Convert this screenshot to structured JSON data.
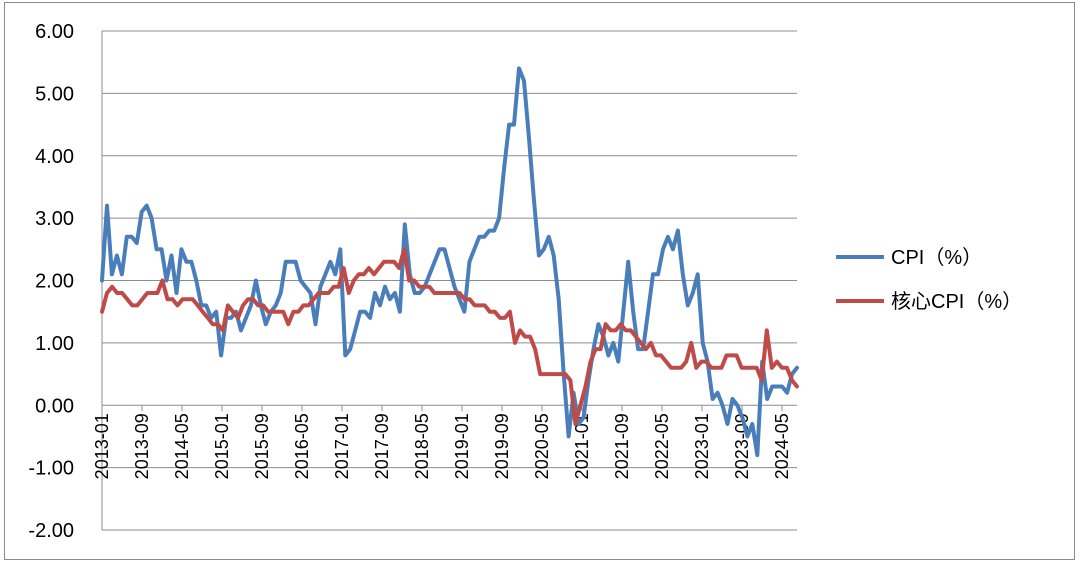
{
  "chart_data": {
    "type": "line",
    "title": "",
    "xlabel": "",
    "ylabel": "",
    "ylim": [
      -2.0,
      6.0
    ],
    "yticks": [
      "-2.00",
      "-1.00",
      "0.00",
      "1.00",
      "2.00",
      "3.00",
      "4.00",
      "5.00",
      "6.00"
    ],
    "grid": "horizontal",
    "legend_position": "right",
    "x_tick_labels": [
      "2013-01",
      "2013-09",
      "2014-05",
      "2015-01",
      "2015-09",
      "2016-05",
      "2017-01",
      "2017-09",
      "2018-05",
      "2019-01",
      "2019-09",
      "2020-05",
      "2021-01",
      "2021-09",
      "2022-05",
      "2023-01",
      "2023-09",
      "2024-05"
    ],
    "x_start": "2013-01",
    "x_end": "2024-08",
    "series": [
      {
        "name": "CPI（%）",
        "color": "#4a7ebb",
        "values": [
          2.0,
          3.2,
          2.1,
          2.4,
          2.1,
          2.7,
          2.7,
          2.6,
          3.1,
          3.2,
          3.0,
          2.5,
          2.5,
          2.0,
          2.4,
          1.8,
          2.5,
          2.3,
          2.3,
          2.0,
          1.6,
          1.6,
          1.4,
          1.5,
          0.8,
          1.4,
          1.4,
          1.5,
          1.2,
          1.4,
          1.6,
          2.0,
          1.6,
          1.3,
          1.5,
          1.6,
          1.8,
          2.3,
          2.3,
          2.3,
          2.0,
          1.9,
          1.8,
          1.3,
          1.9,
          2.1,
          2.3,
          2.1,
          2.5,
          0.8,
          0.9,
          1.2,
          1.5,
          1.5,
          1.4,
          1.8,
          1.6,
          1.9,
          1.7,
          1.8,
          1.5,
          2.9,
          2.1,
          1.8,
          1.8,
          1.9,
          2.1,
          2.3,
          2.5,
          2.5,
          2.2,
          1.9,
          1.7,
          1.5,
          2.3,
          2.5,
          2.7,
          2.7,
          2.8,
          2.8,
          3.0,
          3.8,
          4.5,
          4.5,
          5.4,
          5.2,
          4.3,
          3.3,
          2.4,
          2.5,
          2.7,
          2.4,
          1.7,
          0.5,
          -0.5,
          0.2,
          -0.3,
          -0.2,
          0.4,
          0.9,
          1.3,
          1.1,
          0.8,
          1.0,
          0.7,
          1.5,
          2.3,
          1.5,
          0.9,
          0.9,
          1.5,
          2.1,
          2.1,
          2.5,
          2.7,
          2.5,
          2.8,
          2.1,
          1.6,
          1.8,
          2.1,
          1.0,
          0.7,
          0.1,
          0.2,
          0.0,
          -0.3,
          0.1,
          0.0,
          -0.2,
          -0.5,
          -0.3,
          -0.8,
          0.7,
          0.1,
          0.3,
          0.3,
          0.3,
          0.2,
          0.5,
          0.6
        ],
        "end_value": 0.6
      },
      {
        "name": "核心CPI（%）",
        "color": "#be4b48",
        "values": [
          1.5,
          1.8,
          1.9,
          1.8,
          1.8,
          1.7,
          1.6,
          1.6,
          1.7,
          1.8,
          1.8,
          1.8,
          2.0,
          1.7,
          1.7,
          1.6,
          1.7,
          1.7,
          1.7,
          1.6,
          1.5,
          1.4,
          1.3,
          1.3,
          1.2,
          1.6,
          1.5,
          1.4,
          1.6,
          1.7,
          1.7,
          1.6,
          1.6,
          1.5,
          1.5,
          1.5,
          1.5,
          1.3,
          1.5,
          1.5,
          1.6,
          1.6,
          1.7,
          1.8,
          1.8,
          1.8,
          1.9,
          1.9,
          2.2,
          1.8,
          2.0,
          2.1,
          2.1,
          2.2,
          2.1,
          2.2,
          2.3,
          2.3,
          2.3,
          2.2,
          2.5,
          2.0,
          2.0,
          1.9,
          1.9,
          1.9,
          1.8,
          1.8,
          1.8,
          1.8,
          1.8,
          1.8,
          1.7,
          1.7,
          1.6,
          1.6,
          1.6,
          1.5,
          1.5,
          1.4,
          1.4,
          1.5,
          1.0,
          1.2,
          1.1,
          1.1,
          0.9,
          0.5,
          0.5,
          0.5,
          0.5,
          0.5,
          0.5,
          0.4,
          -0.3,
          0.0,
          0.3,
          0.7,
          0.9,
          0.9,
          1.3,
          1.2,
          1.2,
          1.3,
          1.2,
          1.2,
          1.1,
          1.0,
          0.9,
          1.0,
          0.8,
          0.8,
          0.7,
          0.6,
          0.6,
          0.6,
          0.7,
          1.0,
          0.6,
          0.7,
          0.7,
          0.6,
          0.6,
          0.6,
          0.8,
          0.8,
          0.8,
          0.6,
          0.6,
          0.6,
          0.6,
          0.4,
          1.2,
          0.6,
          0.7,
          0.6,
          0.6,
          0.4,
          0.3
        ],
        "end_value": 0.3
      }
    ]
  }
}
